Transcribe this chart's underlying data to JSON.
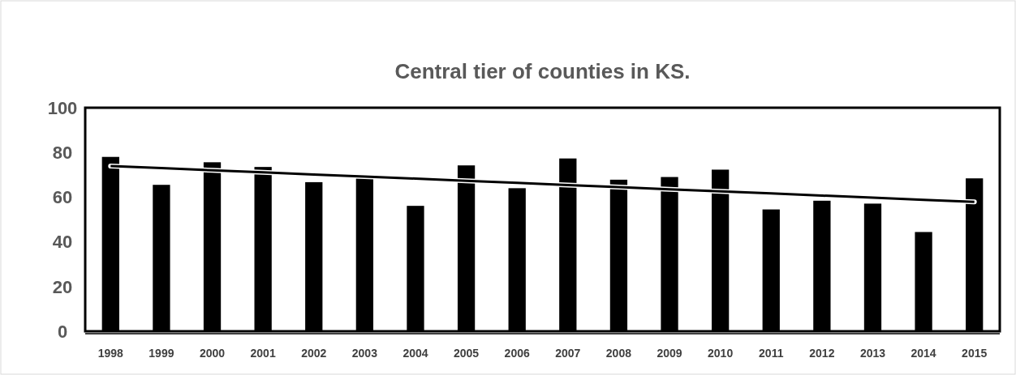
{
  "chart_data": {
    "type": "bar",
    "title": "Central tier of counties in KS.",
    "categories": [
      "1998",
      "1999",
      "2000",
      "2001",
      "2002",
      "2003",
      "2004",
      "2005",
      "2006",
      "2007",
      "2008",
      "2009",
      "2010",
      "2011",
      "2012",
      "2013",
      "2014",
      "2015"
    ],
    "series": [
      {
        "color": "#000000",
        "values": [
          78,
          65.5,
          75.6,
          73.5,
          66.7,
          69.5,
          56.1,
          74.2,
          64,
          77.3,
          67.8,
          69,
          72.3,
          54.5,
          58.4,
          57.1,
          44.4,
          68.4
        ]
      },
      {
        "type": "line",
        "color": "#000000",
        "values": [
          73.9,
          73.0,
          72.0,
          71.1,
          70.1,
          69.2,
          68.3,
          67.3,
          66.4,
          65.4,
          64.5,
          63.5,
          62.6,
          61.7,
          60.7,
          59.8,
          58.8,
          57.9
        ]
      }
    ],
    "ylim": [
      0,
      100
    ],
    "yticks": [
      0,
      20,
      40,
      60,
      80,
      100
    ],
    "grid": false
  }
}
